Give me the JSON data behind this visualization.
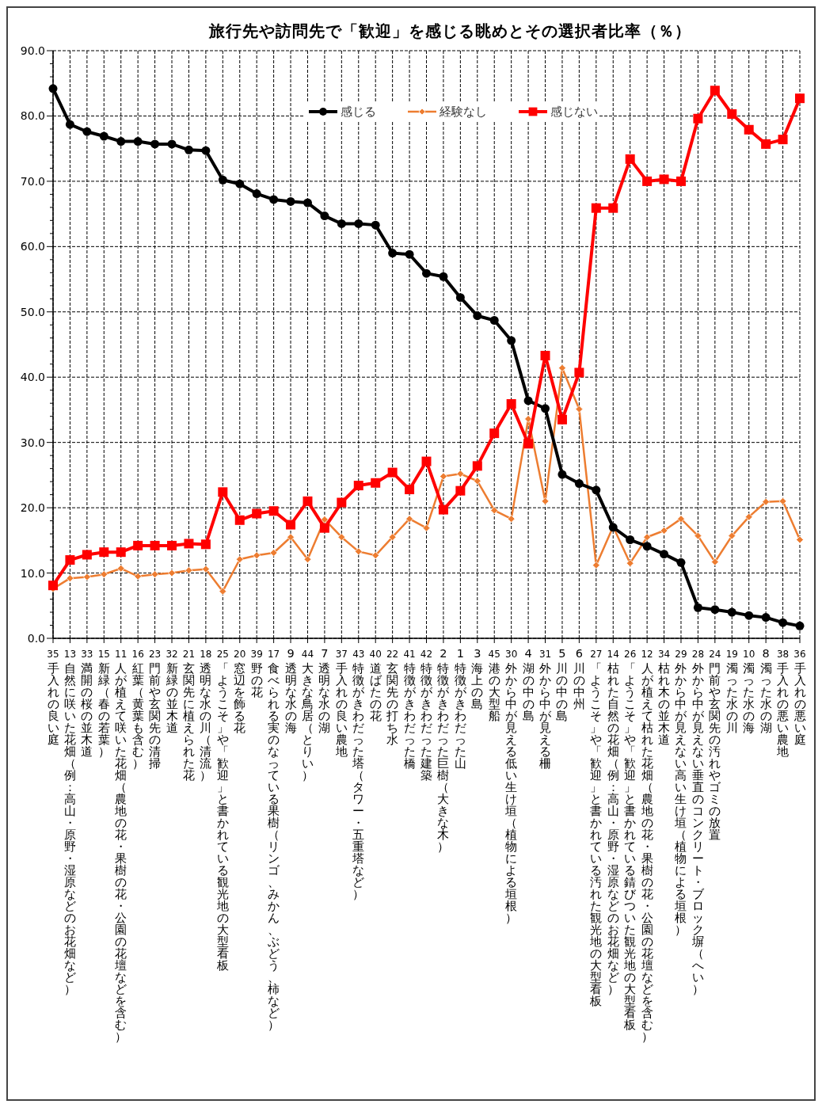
{
  "chart_data": {
    "type": "line",
    "title": "旅行先や訪問先で「歓迎」を感じる眺めとその選択者比率（％）",
    "categories": [
      "35 手入れの良い庭",
      "13 自然に咲いた花畑（例：高山・原野・湿原などのお花畑など）",
      "33 満開の桜の並木道",
      "15 新緑（春の若葉）",
      "11 人が植えて咲いた花畑（農地の花・果樹の花・公園の花壇などを含む）",
      "16 紅葉（黄葉も含む）",
      "23 門前や玄関先の清掃",
      "32 新緑の並木道",
      "21 玄関先に植えられた花",
      "18 透明な水の川（清流）",
      "25 「ようこそ」や「歓迎」と書かれている観光地の大型看板",
      "20 窓辺を飾る花",
      "39 野の花",
      "17 食べられる実のなっている果樹（リンゴ、みかん、ぶどう、柿など）",
      "9 透明な水の海",
      "44 大きな鳥居（とりい）",
      "7 透明な水の湖",
      "37 手入れの良い農地",
      "43 特徴がきわだった塔（タワー・五重塔など）",
      "40 道ばたの花",
      "22 玄関先の打ち水",
      "41 特徴がきわだった橋",
      "42 特徴がきわだった建築",
      "2 特徴がきわだった巨樹（大きな木）",
      "1 特徴がきわだった山",
      "3 海上の島",
      "45 港の大型船",
      "30 外から中が見える低い生け垣（植物による垣根）",
      "4 湖の中の島",
      "31 外から中が見える柵",
      "5 川の中の島",
      "6 川の中州",
      "27 「ようこそ」や「歓迎」と書かれている汚れた観光地の大型看板",
      "14 枯れた自然の花畑（例：高山・原野・湿原などのお花畑など）",
      "26 「ようこそ」や「歓迎」と書かれている錆びついた観光地の大型看板",
      "12 人が植えて枯れた花畑（農地の花・果樹の花・公園の花壇などを含む）",
      "34 枯れ木の並木道",
      "29 外から中が見えない高い生け垣（植物による垣根）",
      "28 外から中が見えない垂直のコンクリート・ブロック塀（へい）",
      "24 門前や玄関先の汚れやゴミの放置",
      "19 濁った水の川",
      "10 濁った水の海",
      "8 濁った水の湖",
      "38 手入れの悪い農地",
      "36 手入れの悪い庭"
    ],
    "series": [
      {
        "name": "感じる",
        "color": "#000000",
        "marker": "circle",
        "values": [
          84.2,
          78.7,
          77.6,
          76.9,
          76.1,
          76.1,
          75.7,
          75.7,
          74.8,
          74.7,
          70.2,
          69.6,
          68.1,
          67.2,
          66.9,
          66.7,
          64.7,
          63.5,
          63.5,
          63.3,
          59.0,
          58.8,
          55.9,
          55.4,
          52.2,
          49.4,
          48.7,
          45.6,
          36.4,
          35.2,
          25.1,
          23.7,
          22.7,
          17.0,
          15.1,
          14.1,
          12.9,
          11.6,
          4.7,
          4.4,
          4.0,
          3.5,
          3.2,
          2.4,
          1.9
        ]
      },
      {
        "name": "経験なし",
        "color": "#ed7d31",
        "marker": "diamond",
        "values": [
          7.6,
          9.2,
          9.4,
          9.8,
          10.7,
          9.5,
          9.8,
          10.0,
          10.4,
          10.6,
          7.2,
          12.1,
          12.7,
          13.1,
          15.5,
          12.1,
          18.2,
          15.5,
          13.3,
          12.7,
          15.5,
          18.3,
          16.9,
          24.8,
          25.2,
          24.1,
          19.6,
          18.3,
          33.6,
          21.0,
          41.4,
          35.1,
          11.2,
          17.1,
          11.5,
          15.5,
          16.5,
          18.3,
          15.7,
          11.7,
          15.7,
          18.6,
          20.9,
          21.0,
          15.1
        ]
      },
      {
        "name": "感じない",
        "color": "#ff0000",
        "marker": "square",
        "values": [
          8.1,
          12.0,
          12.8,
          13.2,
          13.2,
          14.2,
          14.2,
          14.2,
          14.5,
          14.4,
          22.4,
          18.1,
          19.1,
          19.5,
          17.4,
          21.0,
          16.9,
          20.8,
          23.4,
          23.8,
          25.4,
          22.8,
          27.1,
          19.7,
          22.6,
          26.4,
          31.4,
          35.9,
          29.8,
          43.3,
          33.5,
          40.7,
          65.9,
          65.9,
          73.4,
          70.0,
          70.3,
          70.0,
          79.6,
          83.9,
          80.3,
          77.9,
          75.7,
          76.4,
          82.7
        ]
      }
    ],
    "ylim": [
      0,
      90
    ],
    "yticks": [
      {
        "value": 0,
        "label": "0.0"
      },
      {
        "value": 10,
        "label": "10.0"
      },
      {
        "value": 20,
        "label": "20.0"
      },
      {
        "value": 30,
        "label": "30.0"
      },
      {
        "value": 40,
        "label": "40.0"
      },
      {
        "value": 50,
        "label": "50.0"
      },
      {
        "value": 60,
        "label": "60.0"
      },
      {
        "value": 70,
        "label": "70.0"
      },
      {
        "value": 80,
        "label": "80.0"
      },
      {
        "value": 90,
        "label": "90.0"
      }
    ],
    "grid": true,
    "legend": "top"
  }
}
